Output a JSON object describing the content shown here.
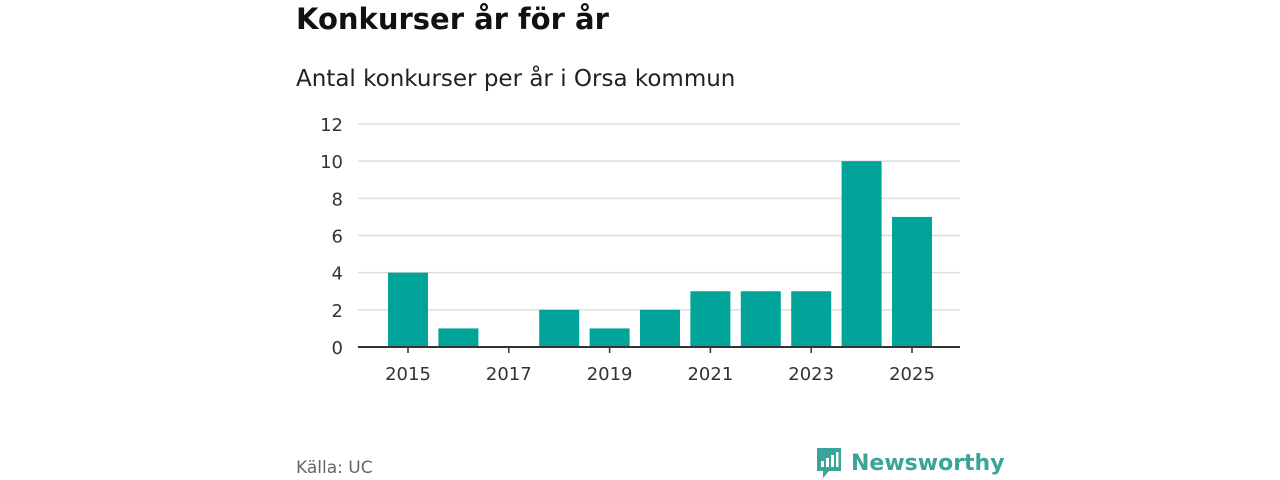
{
  "header": {
    "title": "Konkurser år för år",
    "subtitle": "Antal konkurser per år i Orsa kommun"
  },
  "footer": {
    "source": "Källa: UC",
    "brand": "Newsworthy",
    "brand_icon": "newsworthy-logo-icon"
  },
  "colors": {
    "bar": "#00a499",
    "gridline": "#dddddd",
    "baseline": "#333333",
    "brand": "#3aa39a"
  },
  "chart_data": {
    "type": "bar",
    "categories": [
      "2015",
      "2016",
      "2017",
      "2018",
      "2019",
      "2020",
      "2021",
      "2022",
      "2023",
      "2024",
      "2025"
    ],
    "values": [
      4,
      1,
      0,
      2,
      1,
      2,
      3,
      3,
      3,
      10,
      7
    ],
    "x_tick_labels": [
      "2015",
      "2017",
      "2019",
      "2021",
      "2023",
      "2025"
    ],
    "y_ticks": [
      0,
      2,
      4,
      6,
      8,
      10,
      12
    ],
    "ylim": [
      0,
      12
    ],
    "grid": true,
    "legend": "none"
  }
}
